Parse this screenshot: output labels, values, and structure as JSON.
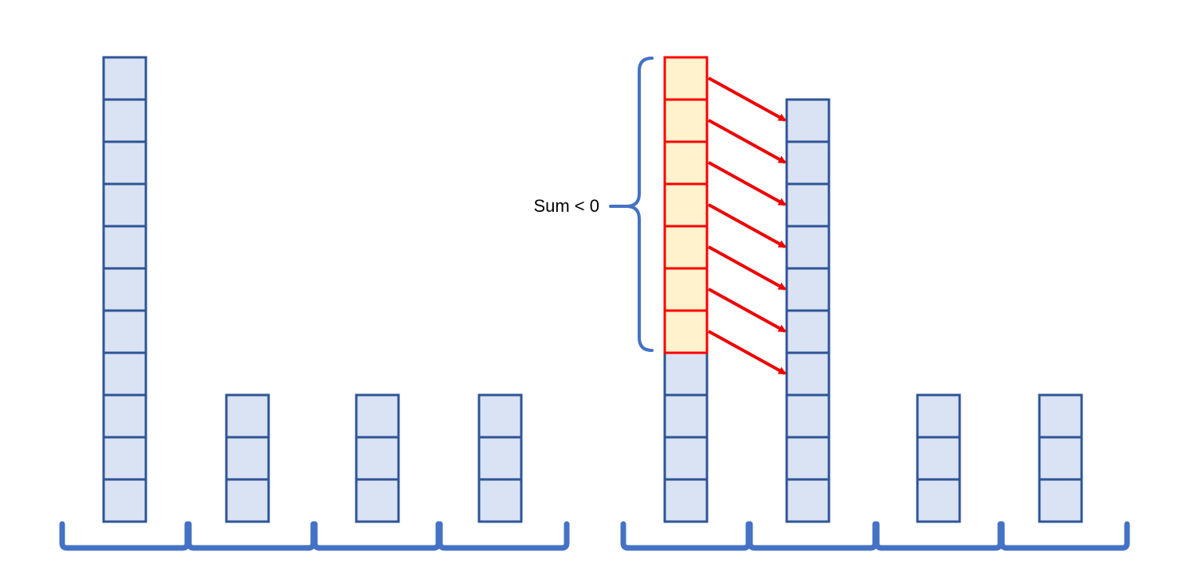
{
  "annotation": {
    "label": "Sum < 0"
  },
  "colors": {
    "cell_fill": "#dae3f3",
    "cell_stroke": "#2f5597",
    "highlight_fill": "#fff2cc",
    "highlight_stroke": "#ff0000",
    "arrow": "#ee0000",
    "bracket": "#4472c4",
    "text": "#000000"
  },
  "panels": [
    {
      "stacks": [
        {
          "cells": 11,
          "highlighted": 0
        },
        {
          "cells": 3,
          "highlighted": 0
        },
        {
          "cells": 3,
          "highlighted": 0
        },
        {
          "cells": 3,
          "highlighted": 0
        }
      ]
    },
    {
      "stacks": [
        {
          "cells": 11,
          "highlighted": 7
        },
        {
          "cells": 10,
          "highlighted": 0
        },
        {
          "cells": 3,
          "highlighted": 0
        },
        {
          "cells": 3,
          "highlighted": 0
        }
      ],
      "arrows": {
        "from_stack": 0,
        "to_stack": 1,
        "count": 7
      }
    }
  ]
}
